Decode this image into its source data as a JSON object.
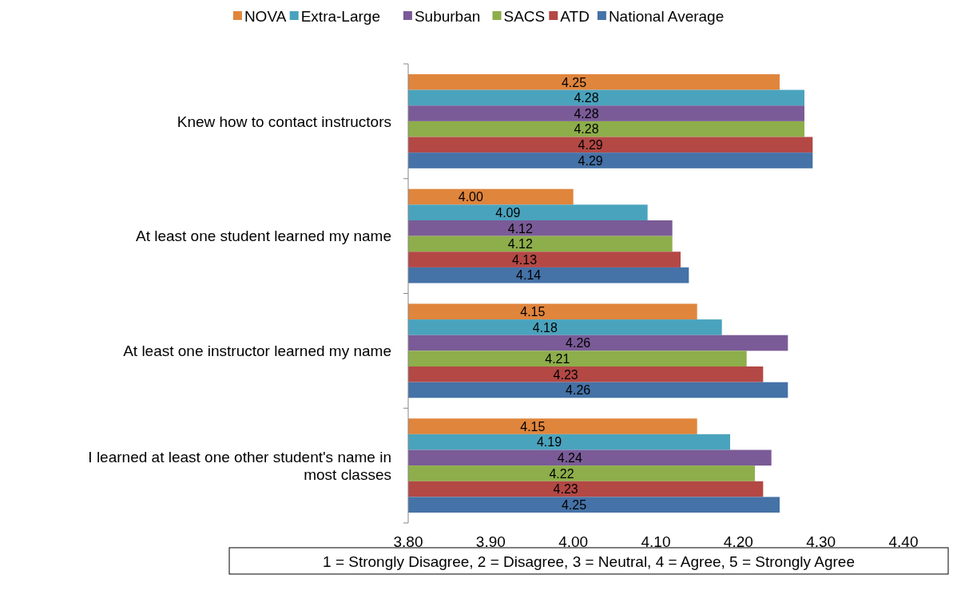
{
  "chart_data": {
    "type": "bar",
    "orientation": "horizontal",
    "categories": [
      "Knew how to contact instructors",
      "At least one student learned my name",
      "At least one instructor learned my name",
      "I learned at least one other student's name in most classes"
    ],
    "series": [
      {
        "name": "NOVA",
        "color": "#e0853c",
        "values": [
          4.25,
          4.0,
          4.15,
          4.15
        ],
        "value_labels": [
          "4.25",
          "4.00",
          "4.15",
          "4.15"
        ]
      },
      {
        "name": "Extra-Large",
        "color": "#4aa3bd",
        "values": [
          4.28,
          4.09,
          4.18,
          4.19
        ],
        "value_labels": [
          "4.28",
          "4.09",
          "4.18",
          "4.19"
        ]
      },
      {
        "name": "Suburban",
        "color": "#7a5b97",
        "values": [
          4.28,
          4.12,
          4.26,
          4.24
        ],
        "value_labels": [
          "4.28",
          "4.12",
          "4.26",
          "4.24"
        ]
      },
      {
        "name": "SACS",
        "color": "#8dae4a",
        "values": [
          4.28,
          4.12,
          4.21,
          4.22
        ],
        "value_labels": [
          "4.28",
          "4.12",
          "4.21",
          "4.22"
        ]
      },
      {
        "name": "ATD",
        "color": "#b34845",
        "values": [
          4.29,
          4.13,
          4.23,
          4.23
        ],
        "value_labels": [
          "4.29",
          "4.13",
          "4.23",
          "4.23"
        ]
      },
      {
        "name": "National Average",
        "color": "#4572a7",
        "values": [
          4.29,
          4.14,
          4.26,
          4.25
        ],
        "value_labels": [
          "4.29",
          "4.14",
          "4.26",
          "4.25"
        ]
      }
    ],
    "xlim": [
      3.8,
      4.4
    ],
    "xticks": [
      {
        "value": 3.8,
        "label": "3.80"
      },
      {
        "value": 3.9,
        "label": "3.90"
      },
      {
        "value": 4.0,
        "label": "4.00"
      },
      {
        "value": 4.1,
        "label": "4.10"
      },
      {
        "value": 4.2,
        "label": "4.20"
      },
      {
        "value": 4.3,
        "label": "4.30"
      },
      {
        "value": 4.4,
        "label": "4.40"
      }
    ],
    "grid": false,
    "legend": "top",
    "annotations": [
      "1 = Strongly Disagree, 2 = Disagree, 3 = Neutral, 4 = Agree, 5 = Strongly Agree"
    ]
  }
}
